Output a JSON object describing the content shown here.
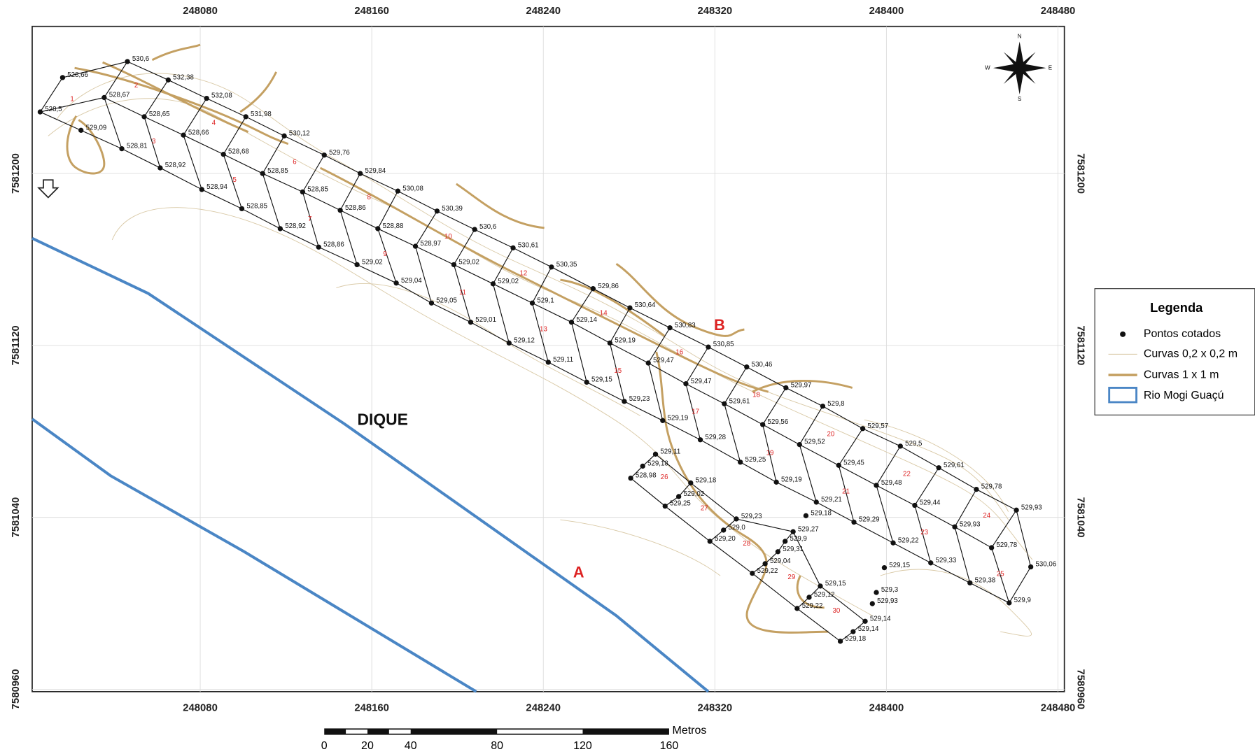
{
  "map": {
    "x_ticks": [
      "248080",
      "248160",
      "248240",
      "248320",
      "248400",
      "248480"
    ],
    "y_ticks": [
      "7581200",
      "7581120",
      "7581040",
      "7580960"
    ],
    "points": [
      "528,66",
      "528,5",
      "529,09",
      "530,6",
      "528,67",
      "528,81",
      "532,38",
      "528,65",
      "528,92",
      "532,08",
      "528,66",
      "528,94",
      "531,98",
      "528,68",
      "528,85",
      "530,12",
      "528,85",
      "528,92",
      "529,76",
      "528,85",
      "528,86",
      "529,84",
      "528,86",
      "529,02",
      "530,08",
      "528,88",
      "529,04",
      "530,39",
      "528,97",
      "529,05",
      "530,6",
      "529,02",
      "529,01",
      "530,61",
      "529,02",
      "529,12",
      "530,35",
      "529,1",
      "529,11",
      "529,86",
      "529,14",
      "529,15",
      "530,64",
      "529,19",
      "529,23",
      "530,83",
      "529,47",
      "529,19",
      "530,85",
      "529,47",
      "529,28",
      "530,46",
      "529,61",
      "529,25",
      "529,97",
      "529,56",
      "529,19",
      "529,8",
      "529,52",
      "529,21",
      "529,57",
      "529,45",
      "529,29",
      "529,5",
      "529,48",
      "529,22",
      "529,61",
      "529,44",
      "529,33",
      "529,78",
      "529,93",
      "529,38",
      "529,93",
      "529,78",
      "529,9",
      "530,06",
      "529,15",
      "529,3",
      "529,93",
      "529,18",
      "529,11",
      "529,18",
      "528,98",
      "529,18",
      "529,02",
      "529,25",
      "529,23",
      "529,0",
      "529,20",
      "529,27",
      "529,9",
      "529,31",
      "529,04",
      "529,22",
      "529,15",
      "529,12",
      "529,22",
      "529,14",
      "529,14",
      "529,18"
    ],
    "cells": [
      "1",
      "2",
      "3",
      "4",
      "5",
      "6",
      "7",
      "8",
      "9",
      "10",
      "11",
      "12",
      "13",
      "14",
      "15",
      "16",
      "17",
      "18",
      "19",
      "20",
      "21",
      "22",
      "23",
      "24",
      "25",
      "26",
      "27",
      "28",
      "29",
      "30"
    ],
    "labels": {
      "a": "A",
      "b": "B",
      "dique": "DIQUE"
    },
    "legend": {
      "title": "Legenda",
      "items": [
        "Pontos cotados",
        "Curvas 0,2 x 0,2 m",
        "Curvas 1 x 1 m",
        "Rio Mogi Guaçú"
      ]
    },
    "scale": {
      "unit": "Metros",
      "ticks": [
        "0",
        "20",
        "40",
        "80",
        "120",
        "160"
      ]
    },
    "compass": {
      "n": "N",
      "e": "E",
      "s": "S",
      "w": "W"
    }
  }
}
